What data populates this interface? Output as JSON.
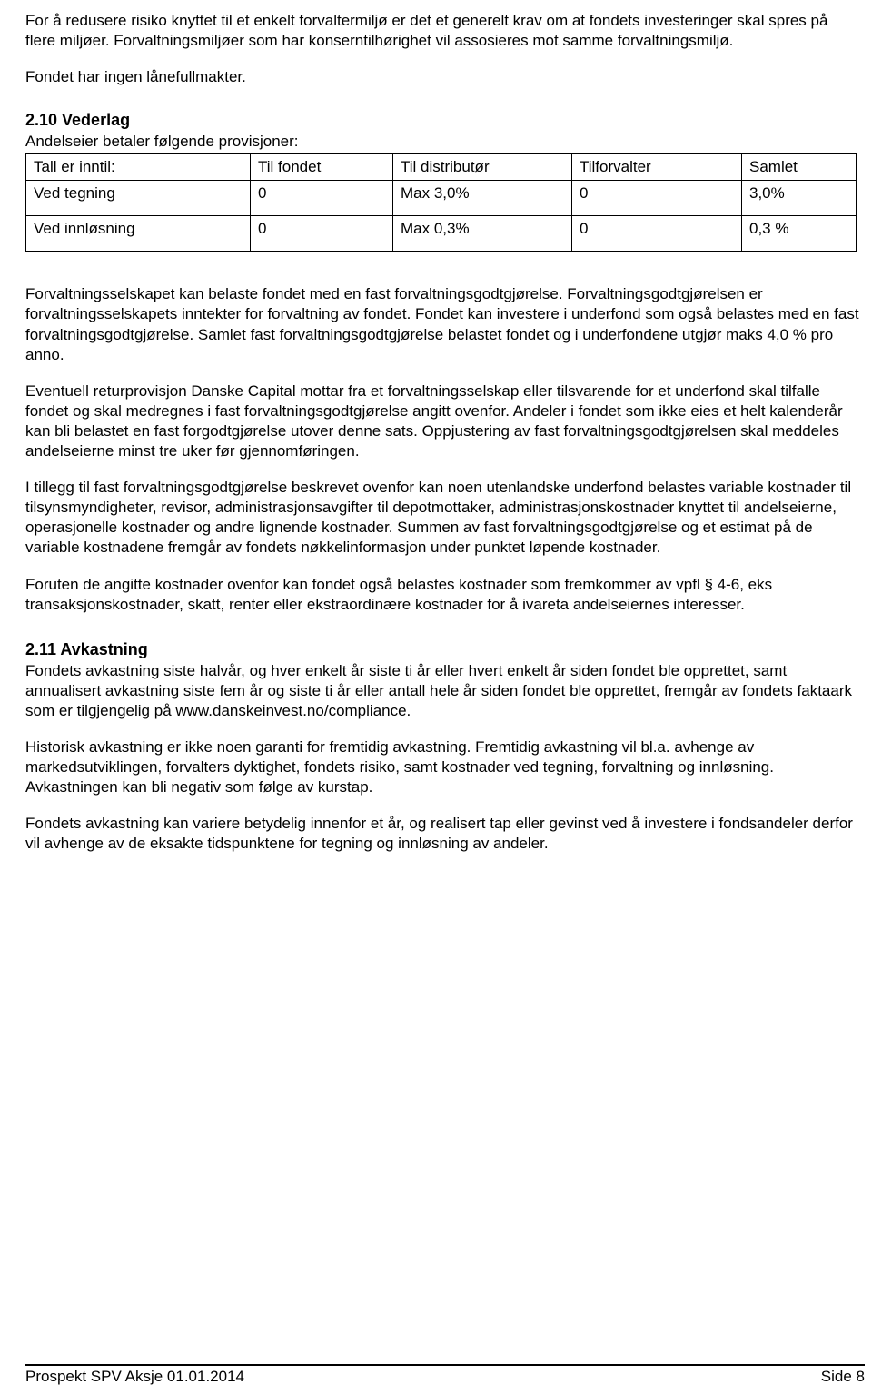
{
  "intro": {
    "para1": "For å redusere risiko knyttet til et enkelt forvaltermiljø er det et generelt krav om at fondets investeringer skal spres på flere miljøer. Forvaltningsmiljøer som har konserntilhørighet vil assosieres mot samme forvaltningsmiljø.",
    "para2": "Fondet har ingen lånefullmakter."
  },
  "vederlag": {
    "heading": "2.10 Vederlag",
    "intro": "Andelseier betaler følgende provisjoner:",
    "table": {
      "headers": [
        "Tall er inntil:",
        "Til fondet",
        "Til distributør",
        "Tilforvalter",
        "Samlet"
      ],
      "rows": [
        [
          "Ved tegning",
          "0",
          "Max 3,0%",
          "0",
          "3,0%"
        ],
        [
          "Ved innløsning",
          "0",
          "Max 0,3%",
          "0",
          " 0,3 %"
        ]
      ]
    },
    "para1": "Forvaltningsselskapet kan belaste fondet med en fast forvaltningsgodtgjørelse. Forvaltningsgodtgjørelsen er forvaltningsselskapets inntekter for forvaltning av fondet. Fondet kan investere i underfond som også belastes med en fast forvaltningsgodtgjørelse. Samlet fast forvaltningsgodtgjørelse belastet fondet og i underfondene utgjør maks  4,0 % pro anno.",
    "para2": "Eventuell returprovisjon Danske Capital mottar fra et forvaltningsselskap eller tilsvarende for et underfond skal tilfalle fondet og skal medregnes i fast forvaltningsgodtgjørelse angitt ovenfor. Andeler i fondet som ikke eies et helt kalenderår kan bli belastet en fast forgodtgjørelse utover denne sats. Oppjustering av fast forvaltningsgodtgjørelsen skal meddeles andelseierne minst tre uker før gjennomføringen.",
    "para3": "I tillegg til fast forvaltningsgodtgjørelse beskrevet ovenfor kan noen utenlandske underfond belastes variable kostnader til tilsynsmyndigheter, revisor, administrasjonsavgifter til depotmottaker, administrasjonskostnader knyttet til andelseierne, operasjonelle kostnader og andre lignende kostnader.  Summen av fast forvaltningsgodtgjørelse og et estimat på de variable kostnadene fremgår av fondets nøkkelinformasjon under punktet løpende kostnader.",
    "para4": "Foruten de angitte kostnader ovenfor kan fondet også belastes kostnader som fremkommer av vpfl § 4-6, eks transaksjonskostnader, skatt, renter eller ekstraordinære kostnader for å ivareta andelseiernes interesser."
  },
  "avkastning": {
    "heading": "2.11 Avkastning",
    "para1": "Fondets avkastning siste halvår, og hver enkelt år siste ti år eller hvert enkelt år siden fondet ble opprettet, samt annualisert avkastning siste fem år og siste ti år eller antall hele år siden fondet ble opprettet, fremgår av fondets faktaark som er tilgjengelig på www.danskeinvest.no/compliance.",
    "para2": "Historisk avkastning er ikke noen garanti for fremtidig avkastning. Fremtidig avkastning vil bl.a. avhenge av markedsutviklingen, forvalters dyktighet, fondets risiko, samt kostnader ved tegning, forvaltning og innløsning. Avkastningen kan bli negativ som følge av kurstap.",
    "para3": "Fondets avkastning kan variere betydelig innenfor et år, og realisert tap eller gevinst ved å investere i fondsandeler derfor vil avhenge av de eksakte tidspunktene for tegning og innløsning av andeler."
  },
  "footer": {
    "left": "Prospekt SPV Aksje 01.01.2014",
    "right": "Side 8"
  }
}
